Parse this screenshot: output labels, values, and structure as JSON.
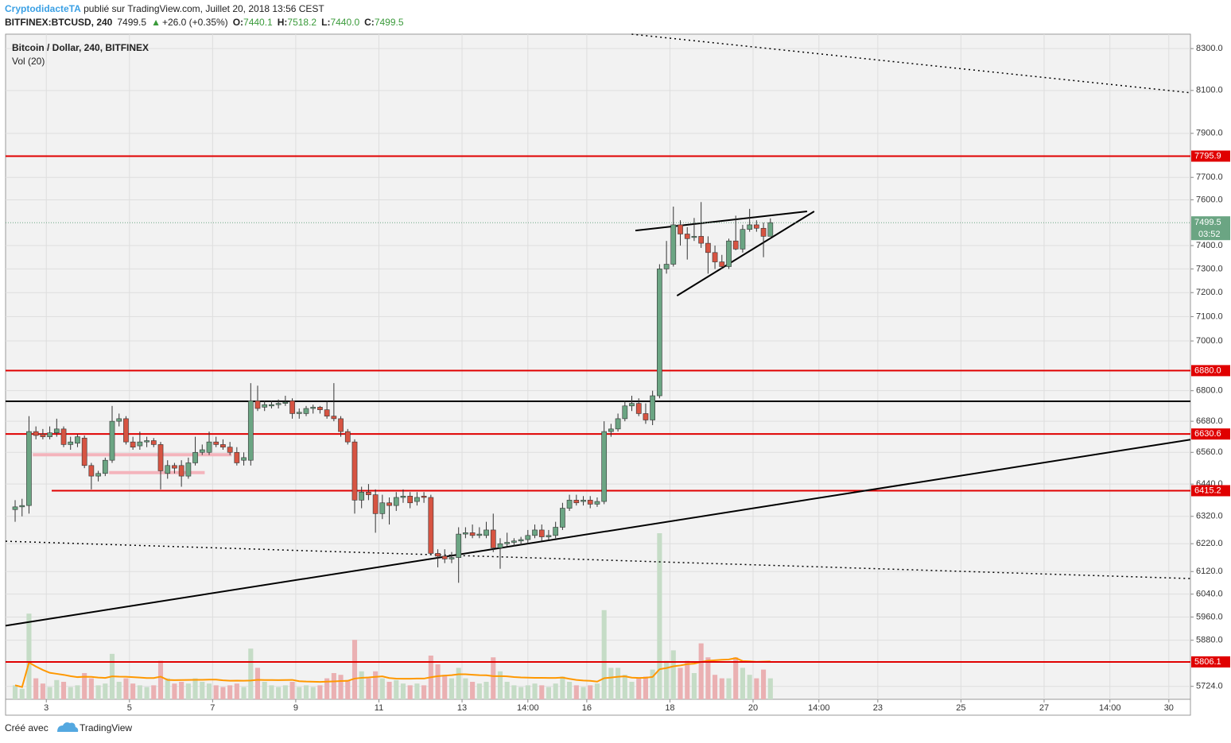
{
  "header": {
    "author": "CryptodidacteTA",
    "published": " publié sur TradingView.com, Juillet 20, 2018 13:56 CEST",
    "symbol": "BITFINEX:BTCUSD, 240",
    "last": "7499.5",
    "arrow": "▲",
    "change": "+26.0 (+0.35%)",
    "o_label": "O:",
    "o": "7440.1",
    "h_label": "H:",
    "h": "7518.2",
    "l_label": "L:",
    "l": "7440.0",
    "c_label": "C:",
    "c": "7499.5"
  },
  "footer": {
    "made_with": "Créé avec",
    "brand": "TradingView"
  },
  "chart_data": {
    "type": "candlestick",
    "title": "Bitcoin / Dollar, 240, BITFINEX",
    "volume_title": "Vol (20)",
    "volume_ma_period": 20,
    "log_scale": true,
    "grid": true,
    "up_color": "#6ba583",
    "down_color": "#d75442",
    "up_volume_color": "#c5dcc6",
    "down_volume_color": "#eab0b2",
    "volume_ma_color": "#ff9800",
    "x": [
      2.25,
      2.417,
      2.583,
      2.75,
      2.917,
      3.083,
      3.25,
      3.417,
      3.583,
      3.75,
      3.917,
      4.083,
      4.25,
      4.417,
      4.583,
      4.75,
      4.917,
      5.083,
      5.25,
      5.417,
      5.583,
      5.75,
      5.917,
      6.083,
      6.25,
      6.417,
      6.583,
      6.75,
      6.917,
      7.083,
      7.25,
      7.417,
      7.583,
      7.75,
      7.917,
      8.083,
      8.25,
      8.417,
      8.583,
      8.75,
      8.917,
      9.083,
      9.25,
      9.417,
      9.583,
      9.75,
      9.917,
      10.083,
      10.25,
      10.417,
      10.583,
      10.75,
      10.917,
      11.083,
      11.25,
      11.417,
      11.583,
      11.75,
      11.917,
      12.083,
      12.25,
      12.417,
      12.583,
      12.75,
      12.917,
      13.083,
      13.25,
      13.417,
      13.583,
      13.75,
      13.917,
      14.083,
      14.25,
      14.417,
      14.583,
      14.75,
      14.917,
      15.083,
      15.25,
      15.417,
      15.583,
      15.75,
      15.917,
      16.083,
      16.25,
      16.417,
      16.583,
      16.75,
      16.917,
      17.083,
      17.25,
      17.417,
      17.583,
      17.75,
      17.917,
      18.083,
      18.25,
      18.417,
      18.583,
      18.75,
      18.917,
      19.083,
      19.25,
      19.417,
      19.583,
      19.75,
      19.917,
      20.083,
      20.25,
      20.417
    ],
    "open": [
      6345,
      6355,
      6360,
      6640,
      6630,
      6620,
      6635,
      6650,
      6590,
      6595,
      6615,
      6510,
      6470,
      6480,
      6530,
      6680,
      6690,
      6600,
      6585,
      6600,
      6605,
      6590,
      6480,
      6510,
      6510,
      6470,
      6520,
      6560,
      6560,
      6600,
      6590,
      6580,
      6560,
      6530,
      6530,
      6760,
      6735,
      6740,
      6745,
      6750,
      6760,
      6710,
      6710,
      6730,
      6735,
      6725,
      6700,
      6690,
      6640,
      6600,
      6380,
      6410,
      6400,
      6330,
      6370,
      6360,
      6390,
      6395,
      6375,
      6395,
      6390,
      6185,
      6175,
      6165,
      6170,
      6255,
      6260,
      6250,
      6250,
      6270,
      6205,
      6220,
      6225,
      6230,
      6235,
      6250,
      6270,
      6245,
      6250,
      6280,
      6350,
      6380,
      6375,
      6380,
      6365,
      6375,
      6640,
      6650,
      6690,
      6740,
      6750,
      6710,
      6685,
      6780,
      7300,
      7320,
      7490,
      7450,
      7435,
      7440,
      7410,
      7370,
      7330,
      7310,
      7420,
      7385,
      7470,
      7490,
      7475,
      7440.1
    ],
    "high": [
      6380,
      6385,
      6700,
      6660,
      6650,
      6660,
      6690,
      6660,
      6620,
      6630,
      6625,
      6520,
      6490,
      6540,
      6740,
      6710,
      6700,
      6620,
      6640,
      6620,
      6615,
      6600,
      6530,
      6520,
      6530,
      6540,
      6620,
      6590,
      6640,
      6620,
      6610,
      6600,
      6580,
      6560,
      6830,
      6820,
      6760,
      6760,
      6765,
      6780,
      6770,
      6730,
      6740,
      6745,
      6740,
      6760,
      6830,
      6700,
      6650,
      6610,
      6430,
      6440,
      6420,
      6400,
      6390,
      6410,
      6420,
      6410,
      6410,
      6410,
      6400,
      6200,
      6200,
      6190,
      6280,
      6280,
      6290,
      6280,
      6300,
      6330,
      6240,
      6260,
      6240,
      6245,
      6270,
      6290,
      6290,
      6270,
      6300,
      6370,
      6400,
      6400,
      6395,
      6395,
      6390,
      6680,
      6670,
      6710,
      6760,
      6780,
      6770,
      6750,
      6800,
      7320,
      7420,
      7570,
      7510,
      7480,
      7520,
      7590,
      7440,
      7400,
      7360,
      7430,
      7530,
      7490,
      7560,
      7510,
      7500,
      7518.2
    ],
    "low": [
      6300,
      6320,
      6330,
      6610,
      6610,
      6610,
      6620,
      6580,
      6570,
      6580,
      6500,
      6420,
      6450,
      6470,
      6520,
      6660,
      6590,
      6570,
      6570,
      6580,
      6580,
      6420,
      6460,
      6480,
      6430,
      6460,
      6510,
      6550,
      6550,
      6580,
      6570,
      6550,
      6510,
      6510,
      6510,
      6720,
      6720,
      6730,
      6730,
      6740,
      6690,
      6690,
      6700,
      6710,
      6710,
      6690,
      6680,
      6620,
      6590,
      6330,
      6350,
      6380,
      6260,
      6310,
      6290,
      6340,
      6370,
      6350,
      6360,
      6370,
      6180,
      6135,
      6150,
      6150,
      6080,
      6240,
      6240,
      6240,
      6240,
      6190,
      6130,
      6210,
      6210,
      6215,
      6220,
      6240,
      6230,
      6235,
      6240,
      6270,
      6340,
      6360,
      6360,
      6350,
      6355,
      6365,
      6620,
      6640,
      6680,
      6720,
      6700,
      6670,
      6665,
      6770,
      7280,
      7310,
      7400,
      7340,
      7420,
      7390,
      7280,
      7300,
      7300,
      7300,
      7380,
      7370,
      7460,
      7460,
      7350,
      7440.0
    ],
    "close": [
      6355,
      6360,
      6640,
      6625,
      6620,
      6635,
      6650,
      6590,
      6600,
      6620,
      6510,
      6470,
      6480,
      6530,
      6680,
      6690,
      6600,
      6580,
      6600,
      6605,
      6590,
      6490,
      6510,
      6500,
      6470,
      6520,
      6560,
      6570,
      6600,
      6590,
      6580,
      6560,
      6520,
      6540,
      6760,
      6730,
      6745,
      6745,
      6750,
      6755,
      6710,
      6715,
      6730,
      6735,
      6725,
      6700,
      6690,
      6640,
      6600,
      6380,
      6410,
      6400,
      6330,
      6370,
      6360,
      6390,
      6395,
      6370,
      6390,
      6390,
      6185,
      6175,
      6165,
      6170,
      6255,
      6260,
      6250,
      6255,
      6270,
      6205,
      6220,
      6225,
      6230,
      6235,
      6250,
      6270,
      6245,
      6250,
      6280,
      6350,
      6380,
      6370,
      6380,
      6365,
      6375,
      6640,
      6650,
      6690,
      6740,
      6750,
      6710,
      6685,
      6780,
      7300,
      7320,
      7490,
      7450,
      7430,
      7440,
      7410,
      7370,
      7330,
      7310,
      7420,
      7385,
      7470,
      7490,
      7475,
      7440,
      7499.5
    ],
    "volume": [
      8,
      6,
      49,
      12,
      9,
      7,
      11,
      10,
      7,
      8,
      15,
      12,
      8,
      9,
      26,
      10,
      12,
      9,
      8,
      7,
      8,
      22,
      12,
      9,
      10,
      9,
      12,
      10,
      9,
      8,
      7,
      8,
      9,
      7,
      29,
      18,
      10,
      8,
      7,
      8,
      10,
      7,
      8,
      7,
      8,
      12,
      15,
      14,
      11,
      34,
      16,
      12,
      16,
      12,
      10,
      11,
      9,
      8,
      9,
      8,
      25,
      20,
      14,
      12,
      18,
      12,
      10,
      9,
      10,
      24,
      16,
      10,
      8,
      7,
      8,
      9,
      8,
      7,
      9,
      13,
      10,
      8,
      7,
      8,
      9,
      51,
      18,
      18,
      14,
      10,
      12,
      13,
      17,
      95,
      22,
      28,
      18,
      22,
      15,
      32,
      24,
      14,
      12,
      12,
      24,
      18,
      14,
      12,
      17,
      12
    ],
    "volume_lim": [
      0,
      100
    ],
    "xlim": [
      2.02,
      30.52
    ],
    "xticks": [
      3,
      5,
      7,
      9,
      11,
      13,
      {
        "value": 14.583,
        "label": "14:00"
      },
      16,
      18,
      20,
      {
        "value": 21.583,
        "label": "14:00"
      },
      23,
      25,
      27,
      {
        "value": 28.583,
        "label": "14:00"
      },
      30
    ],
    "ylim": [
      5681,
      8370
    ],
    "yticks": [
      {
        "value": 8300,
        "label": "8300.0"
      },
      {
        "value": 8100,
        "label": "8100.0"
      },
      {
        "value": 7900,
        "label": "7900.0"
      },
      {
        "value": 7700,
        "label": "7700.0"
      },
      {
        "value": 7600,
        "label": "7600.0"
      },
      {
        "value": 7400,
        "label": "7400.0"
      },
      {
        "value": 7300,
        "label": "7300.0"
      },
      {
        "value": 7200,
        "label": "7200.0"
      },
      {
        "value": 7100,
        "label": "7100.0"
      },
      {
        "value": 7000,
        "label": "7000.0"
      },
      {
        "value": 6800,
        "label": "6800.0"
      },
      {
        "value": 6680,
        "label": "6680.0"
      },
      {
        "value": 6560,
        "label": "6560.0"
      },
      {
        "value": 6440,
        "label": "6440.0"
      },
      {
        "value": 6320,
        "label": "6320.0"
      },
      {
        "value": 6220,
        "label": "6220.0"
      },
      {
        "value": 6120,
        "label": "6120.0"
      },
      {
        "value": 6040,
        "label": "6040.0"
      },
      {
        "value": 5960,
        "label": "5960.0"
      },
      {
        "value": 5880,
        "label": "5880.0"
      },
      {
        "value": 5724,
        "label": "5724.0"
      }
    ],
    "levels": [
      {
        "value": 7795.9,
        "label": "7795.9",
        "color": "#e00000",
        "start": 2.02
      },
      {
        "value": 6880,
        "label": "6880.0",
        "color": "#e00000",
        "start": 2.02
      },
      {
        "value": 6630.6,
        "label": "6630.6",
        "color": "#e00000",
        "start": 2.02
      },
      {
        "value": 6415.2,
        "label": "6415.2",
        "color": "#e00000",
        "start": 3.13
      },
      {
        "value": 5806.1,
        "label": "5806.1",
        "color": "#e00000",
        "start": 2.02
      }
    ],
    "last_price": {
      "value": 7499.5,
      "label": "7499.5",
      "countdown": "03:52",
      "color": "#6ba583"
    },
    "trendlines": [
      {
        "x": [
          2.02,
          30.52
        ],
        "y": [
          5930,
          6609
        ],
        "color": "#000000",
        "width": 2,
        "dash": "none"
      },
      {
        "x": [
          2.02,
          30.52
        ],
        "y": [
          6758,
          6758
        ],
        "color": "#000000",
        "width": 2,
        "dash": "none"
      },
      {
        "x": [
          17.08,
          30.52
        ],
        "y": [
          8370,
          8089
        ],
        "color": "#000000",
        "width": 1.5,
        "dash": "2 4"
      },
      {
        "x": [
          2.02,
          30.52
        ],
        "y": [
          6229,
          6095
        ],
        "color": "#000000",
        "width": 1.5,
        "dash": "2 4"
      },
      {
        "x": [
          17.17,
          21.3
        ],
        "y": [
          7465,
          7549
        ],
        "color": "#000000",
        "width": 2,
        "dash": "none"
      },
      {
        "x": [
          18.17,
          21.47
        ],
        "y": [
          7187,
          7549
        ],
        "color": "#000000",
        "width": 2,
        "dash": "none"
      },
      {
        "x": [
          2.675,
          7.46
        ],
        "y": [
          6551,
          6551
        ],
        "color": "#f4b4bc",
        "width": 4,
        "dash": "none"
      },
      {
        "x": [
          4.51,
          6.81
        ],
        "y": [
          6483,
          6483
        ],
        "color": "#f4b4bc",
        "width": 4,
        "dash": "none"
      }
    ]
  }
}
